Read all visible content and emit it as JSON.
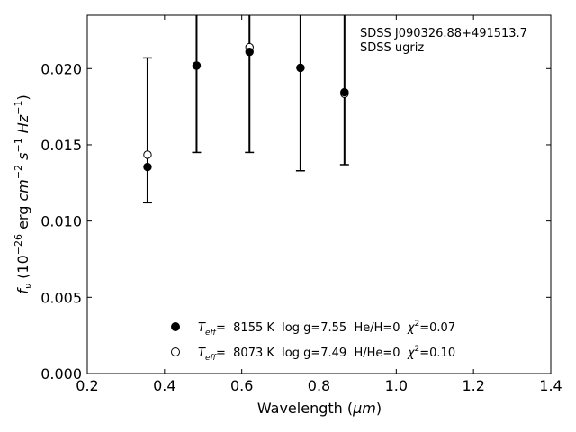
{
  "chart_data": {
    "type": "scatter",
    "x_range": [
      0.2,
      1.4
    ],
    "y_range": [
      0.0,
      0.0235
    ],
    "x_ticks": [
      "0.2",
      "0.4",
      "0.6",
      "0.8",
      "1.0",
      "1.2",
      "1.4"
    ],
    "y_ticks": [
      "0.000",
      "0.005",
      "0.010",
      "0.015",
      "0.020"
    ],
    "xlabel": {
      "prefix": "Wavelength (",
      "unit": "μm",
      "suffix": ")"
    },
    "ylabel": {
      "f": "f",
      "nu": "ν",
      "open": " (10",
      "exp26": "−26",
      "erg": " erg ",
      "cm": "cm",
      "exp2": "−2",
      "s": "s",
      "exp1a": "−1",
      "hz": "Hz",
      "exp1b": "−1",
      "close": ")"
    },
    "annotation": [
      "SDSS J090326.88+491513.7",
      "SDSS ugriz"
    ],
    "grid": false,
    "observed_errorbars": [
      {
        "x": 0.356,
        "y": 0.0159,
        "ylow": 0.0112,
        "yhigh": 0.0207
      },
      {
        "x": 0.483,
        "y": 0.0202,
        "ylow": 0.0145,
        "yhigh": null
      },
      {
        "x": 0.62,
        "y": 0.0211,
        "ylow": 0.0145,
        "yhigh": null
      },
      {
        "x": 0.752,
        "y": 0.02,
        "ylow": 0.0133,
        "yhigh": null
      },
      {
        "x": 0.866,
        "y": 0.0185,
        "ylow": 0.0137,
        "yhigh": null
      }
    ],
    "series": [
      {
        "marker": "filled",
        "x": [
          0.356,
          0.483,
          0.62,
          0.752,
          0.866
        ],
        "y": [
          0.01355,
          0.0202,
          0.0211,
          0.02005,
          0.01845
        ],
        "legend": {
          "teff": "T",
          "teff_sub": "eff",
          "text": "=  8155 K  log g=7.55  He/H=0  ",
          "chi": "χ",
          "chi_sup": "2",
          "chi_val": "=0.07"
        }
      },
      {
        "marker": "open",
        "x": [
          0.356,
          0.483,
          0.62,
          0.752,
          0.866
        ],
        "y": [
          0.01435,
          0.0202,
          0.0214,
          0.02005,
          0.01835
        ],
        "legend": {
          "teff": "T",
          "teff_sub": "eff",
          "text": "=  8073 K  log g=7.49  H/He=0  ",
          "chi": "χ",
          "chi_sup": "2",
          "chi_val": "=0.10"
        }
      }
    ]
  }
}
